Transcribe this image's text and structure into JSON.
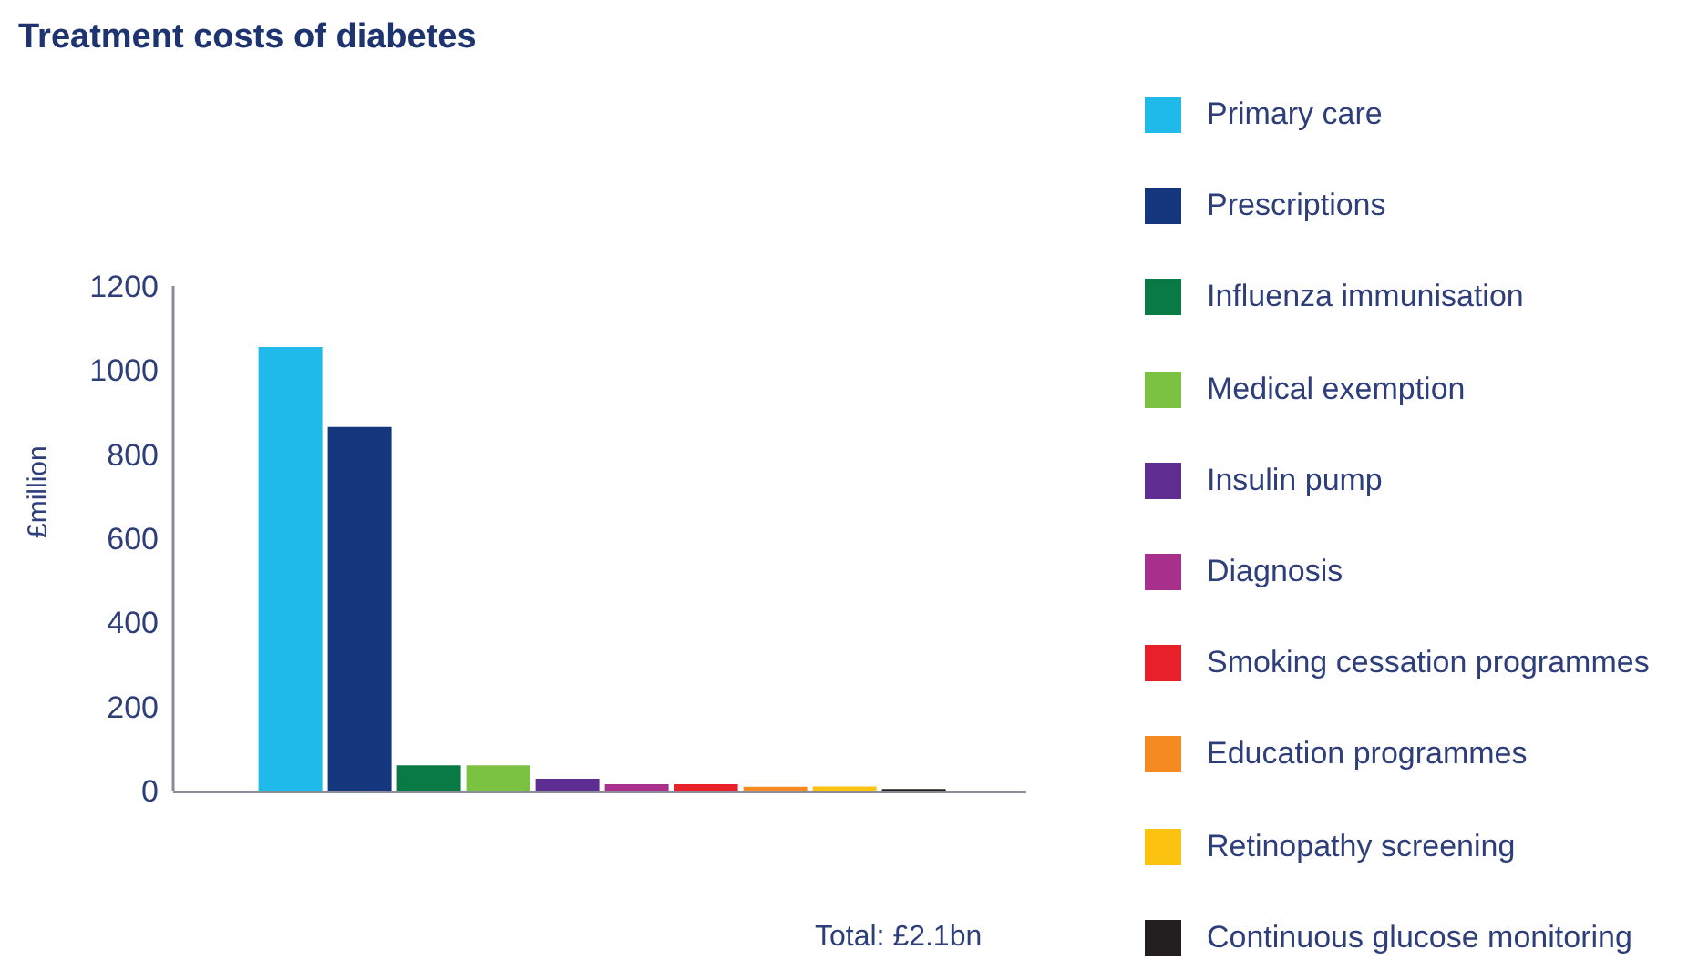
{
  "chart_data": {
    "type": "bar",
    "title": "Treatment costs of diabetes",
    "ylabel": "£million",
    "categories": [
      null
    ],
    "series": [
      {
        "name": "Primary care",
        "color": "#1fbaea",
        "values": [
          1055
        ]
      },
      {
        "name": "Prescriptions",
        "color": "#14377d",
        "values": [
          865
        ]
      },
      {
        "name": "Influenza immunisation",
        "color": "#0a7a45",
        "values": [
          60
        ]
      },
      {
        "name": "Medical exemption",
        "color": "#7cc242",
        "values": [
          60
        ]
      },
      {
        "name": "Insulin pump",
        "color": "#5e2d91",
        "values": [
          28
        ]
      },
      {
        "name": "Diagnosis",
        "color": "#a8308c",
        "values": [
          15
        ]
      },
      {
        "name": "Smoking cessation programmes",
        "color": "#e8202a",
        "values": [
          15
        ]
      },
      {
        "name": "Education programmes",
        "color": "#f58a20",
        "values": [
          9
        ]
      },
      {
        "name": "Retinopathy screening",
        "color": "#fbc20f",
        "values": [
          10
        ]
      },
      {
        "name": "Continuous glucose monitoring",
        "color": "#231f20",
        "values": [
          4
        ]
      }
    ],
    "ylim": [
      0,
      1200
    ],
    "yticks": [
      0,
      200,
      400,
      600,
      800,
      1000,
      1200
    ],
    "grid": false,
    "legend": "right",
    "annotations": [
      "Total: £2.1bn"
    ]
  }
}
